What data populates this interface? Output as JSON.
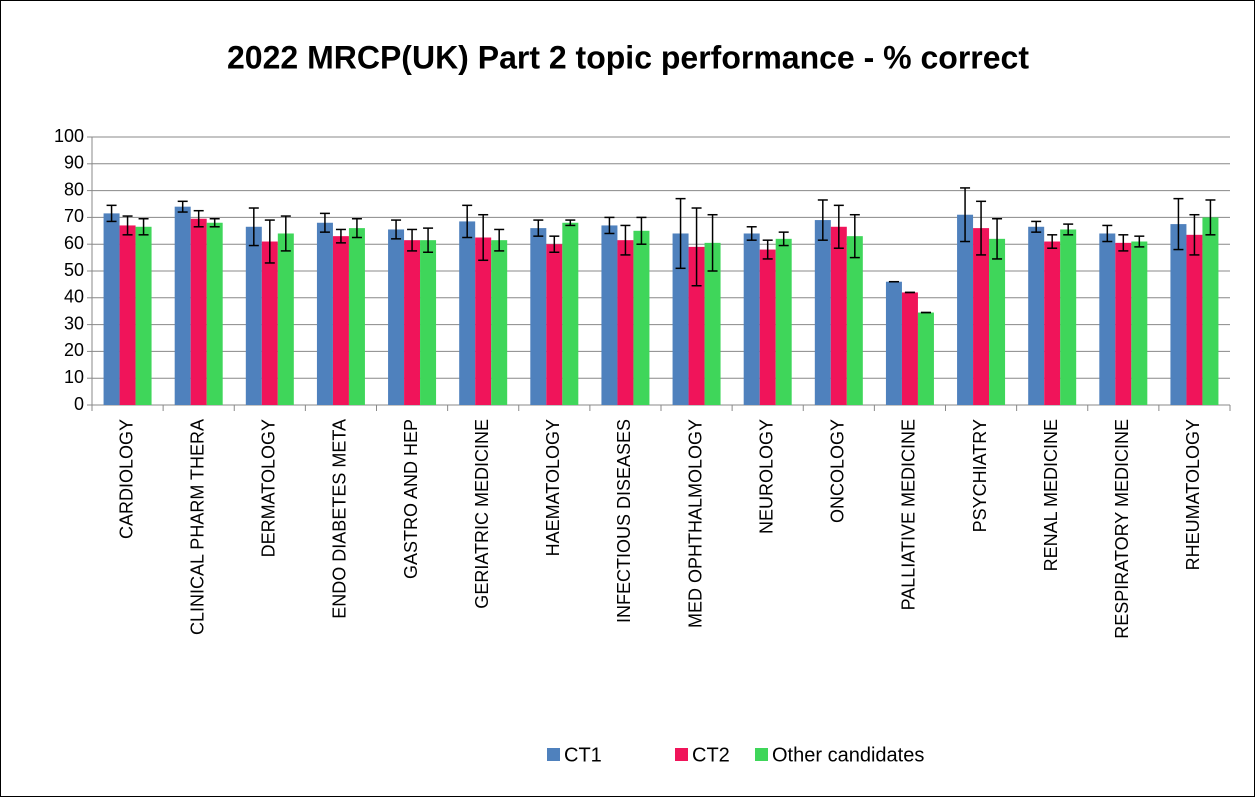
{
  "chart_data": {
    "type": "bar",
    "title": "2022 MRCP(UK) Part 2 topic performance - % correct",
    "categories": [
      "CARDIOLOGY",
      "CLINICAL PHARM THERA",
      "DERMATOLOGY",
      "ENDO DIABETES META",
      "GASTRO AND HEP",
      "GERIATRIC MEDICINE",
      "HAEMATOLOGY",
      "INFECTIOUS DISEASES",
      "MED OPHTHALMOLOGY",
      "NEUROLOGY",
      "ONCOLOGY",
      "PALLIATIVE MEDICINE",
      "PSYCHIATRY",
      "RENAL MEDICINE",
      "RESPIRATORY MEDICINE",
      "RHEUMATOLOGY"
    ],
    "series": [
      {
        "name": "CT1",
        "color": "#4f81bd",
        "values": [
          71.5,
          74,
          66.5,
          68,
          65.5,
          68.5,
          66,
          67,
          64,
          64,
          69,
          46,
          71,
          66.5,
          64,
          67.5
        ],
        "errors": [
          3,
          2,
          7,
          3.5,
          3.5,
          6,
          3,
          3,
          13,
          2.5,
          7.5,
          0,
          10,
          2,
          3,
          9.5
        ]
      },
      {
        "name": "CT2",
        "color": "#f0145a",
        "values": [
          67,
          69.5,
          61,
          63,
          61.5,
          62.5,
          60,
          61.5,
          59,
          58,
          66.5,
          42,
          66,
          61,
          60.5,
          63.5
        ],
        "errors": [
          3.5,
          3,
          8,
          2.5,
          4,
          8.5,
          3,
          5.5,
          14.5,
          3.5,
          8,
          0,
          10,
          2.5,
          3,
          7.5
        ]
      },
      {
        "name": "Other candidates",
        "color": "#3fd65a",
        "values": [
          66.5,
          68,
          64,
          66,
          61.5,
          61.5,
          68,
          65,
          60.5,
          62,
          63,
          34.5,
          62,
          65.5,
          61,
          70
        ],
        "errors": [
          3,
          1.5,
          6.5,
          3.5,
          4.5,
          4,
          1,
          5,
          10.5,
          2.5,
          8,
          0,
          7.5,
          2,
          2,
          6.5
        ]
      }
    ],
    "ylim": [
      0,
      100
    ],
    "yticks": [
      0,
      10,
      20,
      30,
      40,
      50,
      60,
      70,
      80,
      90,
      100
    ],
    "grid": true,
    "legend": "bottom"
  }
}
